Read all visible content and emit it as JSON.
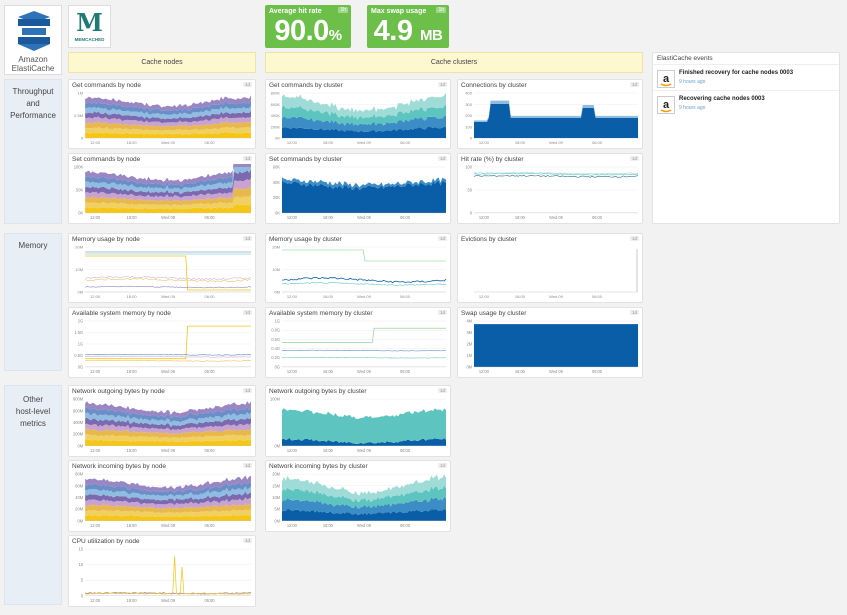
{
  "logos": {
    "elasticache_line1": "Amazon",
    "elasticache_line2": "ElastiCache",
    "memcached_letter": "M",
    "memcached_text": "MEMCACHED"
  },
  "big_numbers": [
    {
      "title": "Average hit rate",
      "value": "90.0",
      "unit": "%",
      "tag": "1h"
    },
    {
      "title": "Max swap usage",
      "value": "4.9",
      "unit": "MB",
      "tag": "1h"
    }
  ],
  "column_headers": {
    "nodes": "Cache nodes",
    "clusters": "Cache clusters"
  },
  "row_labels": {
    "throughput": [
      "Throughput",
      "and",
      "Performance"
    ],
    "memory": [
      "Memory"
    ],
    "other": [
      "Other",
      "host-level",
      "metrics"
    ]
  },
  "events": {
    "title": "ElastiCache events",
    "items": [
      {
        "text": "Finished recovery for cache nodes 0003",
        "time": "9 hours ago"
      },
      {
        "text": "Recovering cache nodes 0003",
        "time": "9 hours ago"
      }
    ]
  },
  "colors": {
    "green": "#6cc04a",
    "blue": "#0a5ea8",
    "teal": "#5ec4c0",
    "yellow": "#f5c518",
    "purple": "#7b6ab0"
  },
  "widgets": [
    {
      "id": "get-node",
      "title": "Get commands by node",
      "tag": "1d",
      "style": "stack-node",
      "yticks": [
        "1M",
        "0.5M",
        "0"
      ],
      "xticks": [
        "12:00",
        "18:00",
        "Wed 09",
        "06:00"
      ]
    },
    {
      "id": "get-cluster",
      "title": "Get commands by cluster",
      "tag": "1d",
      "style": "stack-cluster",
      "yticks": [
        "800K",
        "600K",
        "400K",
        "200K",
        "0K"
      ],
      "xticks": [
        "12:00",
        "18:00",
        "Wed 09",
        "06:00"
      ]
    },
    {
      "id": "conn-cluster",
      "title": "Connections by cluster",
      "tag": "1d",
      "style": "connections",
      "yticks": [
        "400",
        "300",
        "200",
        "100",
        "0"
      ],
      "xticks": [
        "12:00",
        "18:00",
        "Wed 09",
        "06:00"
      ]
    },
    {
      "id": "set-node",
      "title": "Set commands by node",
      "tag": "1d",
      "style": "stack-node2",
      "yticks": [
        "100K",
        "50K",
        "0K"
      ],
      "xticks": [
        "12:00",
        "18:00",
        "Wed 09",
        "06:00"
      ]
    },
    {
      "id": "set-cluster",
      "title": "Set commands by cluster",
      "tag": "1d",
      "style": "set-cluster",
      "yticks": [
        "60K",
        "40K",
        "20K",
        "0K"
      ],
      "xticks": [
        "12:00",
        "18:00",
        "Wed 09",
        "06:00"
      ]
    },
    {
      "id": "hit-cluster",
      "title": "Hit rate (%) by cluster",
      "tag": "1d",
      "style": "hitrate",
      "yticks": [
        "100",
        "50",
        "0"
      ],
      "xticks": [
        "12:00",
        "18:00",
        "Wed 09",
        "06:00"
      ]
    },
    {
      "id": "mem-node",
      "title": "Memory usage by node",
      "tag": "1d",
      "style": "mem-node",
      "yticks": [
        "20M",
        "10M",
        "0M"
      ],
      "xticks": [
        "12:00",
        "18:00",
        "Wed 09",
        "06:00"
      ]
    },
    {
      "id": "mem-cluster",
      "title": "Memory usage by cluster",
      "tag": "1d",
      "style": "mem-cluster",
      "yticks": [
        "20M",
        "10M",
        "0M"
      ],
      "xticks": [
        "12:00",
        "18:00",
        "Wed 09",
        "06:00"
      ]
    },
    {
      "id": "evict-cluster",
      "title": "Evictions by cluster",
      "tag": "1d",
      "style": "evictions",
      "yticks": [],
      "xticks": [
        "12:00",
        "18:00",
        "Wed 09",
        "06:00"
      ]
    },
    {
      "id": "avail-node",
      "title": "Available system memory by node",
      "tag": "1d",
      "style": "avail-node",
      "yticks": [
        "2G",
        "1.5G",
        "1G",
        "0.5G",
        "0G"
      ],
      "xticks": [
        "12:00",
        "18:00",
        "Wed 09",
        "06:00"
      ]
    },
    {
      "id": "avail-cluster",
      "title": "Available system memory by cluster",
      "tag": "1d",
      "style": "avail-cluster",
      "yticks": [
        "1G",
        "0.8G",
        "0.6G",
        "0.4G",
        "0.2G",
        "0G"
      ],
      "xticks": [
        "12:00",
        "18:00",
        "Wed 09",
        "06:00"
      ]
    },
    {
      "id": "swap-cluster",
      "title": "Swap usage by cluster",
      "tag": "1d",
      "style": "swap",
      "yticks": [
        "4M",
        "3M",
        "2M",
        "1M",
        "0M"
      ],
      "xticks": [
        "12:00",
        "18:00",
        "Wed 09",
        "06:00"
      ]
    },
    {
      "id": "netout-node",
      "title": "Network outgoing bytes by node",
      "tag": "1d",
      "style": "stack-node",
      "yticks": [
        "800M",
        "600M",
        "400M",
        "200M",
        "0M"
      ],
      "xticks": [
        "12:00",
        "18:00",
        "Wed 09",
        "06:00"
      ]
    },
    {
      "id": "netout-cluster",
      "title": "Network outgoing bytes by cluster",
      "tag": "1d",
      "style": "netout-cluster",
      "yticks": [
        "100M",
        "0M"
      ],
      "xticks": [
        "12:00",
        "18:00",
        "Wed 09",
        "06:00"
      ]
    },
    {
      "id": "netin-node",
      "title": "Network incoming bytes by node",
      "tag": "1d",
      "style": "stack-node",
      "yticks": [
        "80M",
        "60M",
        "40M",
        "20M",
        "0M"
      ],
      "xticks": [
        "12:00",
        "18:00",
        "Wed 09",
        "06:00"
      ]
    },
    {
      "id": "netin-cluster",
      "title": "Network incoming bytes by cluster",
      "tag": "1d",
      "style": "stack-cluster",
      "yticks": [
        "20M",
        "15M",
        "10M",
        "5M",
        "0M"
      ],
      "xticks": [
        "12:00",
        "18:00",
        "Wed 09",
        "06:00"
      ]
    },
    {
      "id": "cpu-node",
      "title": "CPU utilization by node",
      "tag": "1d",
      "style": "cpu",
      "yticks": [
        "15",
        "10",
        "5",
        "0"
      ],
      "xticks": [
        "12:00",
        "18:00",
        "Wed 09",
        "06:00"
      ]
    }
  ]
}
